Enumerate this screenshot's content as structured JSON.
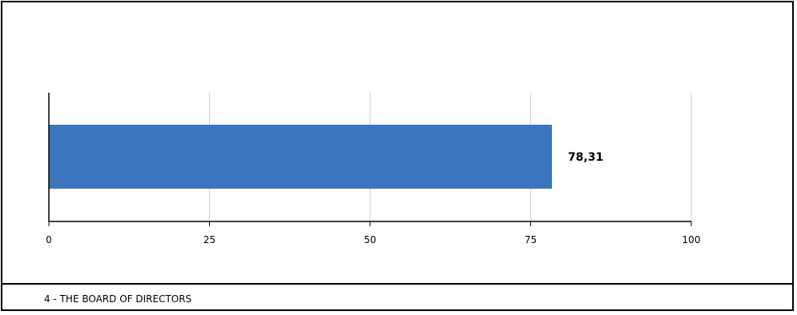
{
  "chart_data": {
    "type": "bar",
    "orientation": "horizontal",
    "categories": [
      ""
    ],
    "values": [
      78.31
    ],
    "data_labels": [
      "78,31"
    ],
    "xlim": [
      0,
      100
    ],
    "x_ticks": [
      0,
      25,
      50,
      75,
      100
    ],
    "x_tick_labels": [
      "0",
      "25",
      "50",
      "75",
      "100"
    ],
    "grid": "vertical",
    "bar_color": "#3a75bd",
    "grid_color": "#cccccc"
  },
  "footer": {
    "caption": "4 - THE BOARD OF DIRECTORS"
  }
}
